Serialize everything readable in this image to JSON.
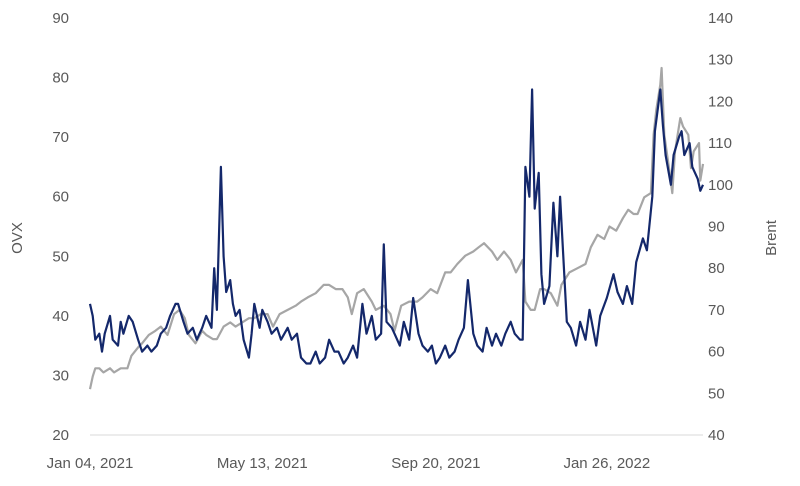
{
  "chart_data": {
    "type": "line",
    "title": "",
    "xlabel": "",
    "ylabel": "OVX",
    "y2label": "Brent",
    "ylim": [
      20,
      90
    ],
    "y2lim": [
      40,
      140
    ],
    "yticks": [
      20,
      30,
      40,
      50,
      60,
      70,
      80,
      90
    ],
    "y2ticks": [
      40,
      50,
      60,
      70,
      80,
      90,
      100,
      110,
      120,
      130,
      140
    ],
    "x_tick_labels": [
      "Jan 04, 2021",
      "May 13, 2021",
      "Sep 20, 2021",
      "Jan 26, 2022"
    ],
    "x_tick_dates": [
      "2021-01-04",
      "2021-05-13",
      "2021-09-20",
      "2022-01-26"
    ],
    "x_range": [
      "2021-01-04",
      "2022-04-08"
    ],
    "grid": false,
    "legend": "none",
    "series": [
      {
        "name": "OVX",
        "axis": "left",
        "color": "#14286b",
        "points": [
          [
            "2021-01-04",
            42
          ],
          [
            "2021-01-06",
            40
          ],
          [
            "2021-01-08",
            36
          ],
          [
            "2021-01-11",
            37
          ],
          [
            "2021-01-13",
            34
          ],
          [
            "2021-01-15",
            37
          ],
          [
            "2021-01-19",
            40
          ],
          [
            "2021-01-21",
            36
          ],
          [
            "2021-01-25",
            35
          ],
          [
            "2021-01-27",
            39
          ],
          [
            "2021-01-29",
            37
          ],
          [
            "2021-02-02",
            40
          ],
          [
            "2021-02-05",
            39
          ],
          [
            "2021-02-09",
            36
          ],
          [
            "2021-02-12",
            34
          ],
          [
            "2021-02-16",
            35
          ],
          [
            "2021-02-19",
            34
          ],
          [
            "2021-02-23",
            35
          ],
          [
            "2021-02-26",
            37
          ],
          [
            "2021-03-02",
            38
          ],
          [
            "2021-03-05",
            40
          ],
          [
            "2021-03-09",
            42
          ],
          [
            "2021-03-11",
            42
          ],
          [
            "2021-03-15",
            39
          ],
          [
            "2021-03-18",
            37
          ],
          [
            "2021-03-22",
            38
          ],
          [
            "2021-03-25",
            36
          ],
          [
            "2021-03-29",
            38
          ],
          [
            "2021-04-01",
            40
          ],
          [
            "2021-04-05",
            38
          ],
          [
            "2021-04-07",
            48
          ],
          [
            "2021-04-09",
            41
          ],
          [
            "2021-04-12",
            65
          ],
          [
            "2021-04-14",
            50
          ],
          [
            "2021-04-16",
            44
          ],
          [
            "2021-04-19",
            46
          ],
          [
            "2021-04-21",
            42
          ],
          [
            "2021-04-23",
            40
          ],
          [
            "2021-04-26",
            41
          ],
          [
            "2021-04-29",
            36
          ],
          [
            "2021-05-03",
            33
          ],
          [
            "2021-05-05",
            37
          ],
          [
            "2021-05-07",
            42
          ],
          [
            "2021-05-11",
            38
          ],
          [
            "2021-05-13",
            41
          ],
          [
            "2021-05-17",
            39
          ],
          [
            "2021-05-20",
            37
          ],
          [
            "2021-05-24",
            38
          ],
          [
            "2021-05-27",
            36
          ],
          [
            "2021-06-01",
            38
          ],
          [
            "2021-06-04",
            36
          ],
          [
            "2021-06-08",
            37
          ],
          [
            "2021-06-11",
            33
          ],
          [
            "2021-06-15",
            32
          ],
          [
            "2021-06-18",
            32
          ],
          [
            "2021-06-22",
            34
          ],
          [
            "2021-06-25",
            32
          ],
          [
            "2021-06-29",
            33
          ],
          [
            "2021-07-02",
            36
          ],
          [
            "2021-07-06",
            34
          ],
          [
            "2021-07-09",
            34
          ],
          [
            "2021-07-13",
            32
          ],
          [
            "2021-07-16",
            33
          ],
          [
            "2021-07-20",
            35
          ],
          [
            "2021-07-23",
            33
          ],
          [
            "2021-07-27",
            42
          ],
          [
            "2021-07-30",
            37
          ],
          [
            "2021-08-03",
            40
          ],
          [
            "2021-08-06",
            36
          ],
          [
            "2021-08-10",
            37
          ],
          [
            "2021-08-12",
            52
          ],
          [
            "2021-08-14",
            39
          ],
          [
            "2021-08-18",
            38
          ],
          [
            "2021-08-20",
            37
          ],
          [
            "2021-08-24",
            35
          ],
          [
            "2021-08-27",
            39
          ],
          [
            "2021-08-31",
            36
          ],
          [
            "2021-09-03",
            43
          ],
          [
            "2021-09-07",
            37
          ],
          [
            "2021-09-10",
            35
          ],
          [
            "2021-09-14",
            34
          ],
          [
            "2021-09-17",
            35
          ],
          [
            "2021-09-20",
            32
          ],
          [
            "2021-09-23",
            33
          ],
          [
            "2021-09-27",
            35
          ],
          [
            "2021-09-30",
            33
          ],
          [
            "2021-10-04",
            34
          ],
          [
            "2021-10-07",
            36
          ],
          [
            "2021-10-11",
            38
          ],
          [
            "2021-10-14",
            46
          ],
          [
            "2021-10-18",
            37
          ],
          [
            "2021-10-21",
            35
          ],
          [
            "2021-10-25",
            34
          ],
          [
            "2021-10-28",
            38
          ],
          [
            "2021-11-01",
            35
          ],
          [
            "2021-11-04",
            37
          ],
          [
            "2021-11-08",
            35
          ],
          [
            "2021-11-11",
            37
          ],
          [
            "2021-11-15",
            39
          ],
          [
            "2021-11-18",
            37
          ],
          [
            "2021-11-22",
            36
          ],
          [
            "2021-11-24",
            36
          ],
          [
            "2021-11-26",
            65
          ],
          [
            "2021-11-29",
            60
          ],
          [
            "2021-12-01",
            78
          ],
          [
            "2021-12-03",
            58
          ],
          [
            "2021-12-06",
            64
          ],
          [
            "2021-12-08",
            47
          ],
          [
            "2021-12-10",
            42
          ],
          [
            "2021-12-14",
            45
          ],
          [
            "2021-12-17",
            59
          ],
          [
            "2021-12-20",
            50
          ],
          [
            "2021-12-22",
            60
          ],
          [
            "2021-12-27",
            39
          ],
          [
            "2021-12-30",
            38
          ],
          [
            "2022-01-03",
            35
          ],
          [
            "2022-01-06",
            39
          ],
          [
            "2022-01-10",
            36
          ],
          [
            "2022-01-13",
            41
          ],
          [
            "2022-01-18",
            35
          ],
          [
            "2022-01-21",
            40
          ],
          [
            "2022-01-26",
            43
          ],
          [
            "2022-01-31",
            47
          ],
          [
            "2022-02-03",
            44
          ],
          [
            "2022-02-07",
            42
          ],
          [
            "2022-02-10",
            45
          ],
          [
            "2022-02-14",
            42
          ],
          [
            "2022-02-17",
            49
          ],
          [
            "2022-02-22",
            53
          ],
          [
            "2022-02-25",
            51
          ],
          [
            "2022-03-01",
            60
          ],
          [
            "2022-03-03",
            71
          ],
          [
            "2022-03-07",
            78
          ],
          [
            "2022-03-09",
            72
          ],
          [
            "2022-03-11",
            67
          ],
          [
            "2022-03-15",
            62
          ],
          [
            "2022-03-17",
            67
          ],
          [
            "2022-03-21",
            70
          ],
          [
            "2022-03-23",
            71
          ],
          [
            "2022-03-25",
            67
          ],
          [
            "2022-03-29",
            69
          ],
          [
            "2022-03-31",
            65
          ],
          [
            "2022-04-04",
            63
          ],
          [
            "2022-04-06",
            61
          ],
          [
            "2022-04-08",
            62
          ]
        ]
      },
      {
        "name": "Brent",
        "axis": "right",
        "color": "#a6a6a6",
        "points": [
          [
            "2021-01-04",
            51
          ],
          [
            "2021-01-06",
            54
          ],
          [
            "2021-01-08",
            56
          ],
          [
            "2021-01-11",
            56
          ],
          [
            "2021-01-14",
            55
          ],
          [
            "2021-01-19",
            56
          ],
          [
            "2021-01-22",
            55
          ],
          [
            "2021-01-27",
            56
          ],
          [
            "2021-02-01",
            56
          ],
          [
            "2021-02-04",
            59
          ],
          [
            "2021-02-09",
            61
          ],
          [
            "2021-02-12",
            62
          ],
          [
            "2021-02-17",
            64
          ],
          [
            "2021-02-22",
            65
          ],
          [
            "2021-02-26",
            66
          ],
          [
            "2021-03-03",
            64
          ],
          [
            "2021-03-08",
            69
          ],
          [
            "2021-03-12",
            70
          ],
          [
            "2021-03-16",
            68
          ],
          [
            "2021-03-19",
            64
          ],
          [
            "2021-03-24",
            62
          ],
          [
            "2021-03-29",
            65
          ],
          [
            "2021-04-01",
            64
          ],
          [
            "2021-04-06",
            63
          ],
          [
            "2021-04-09",
            63
          ],
          [
            "2021-04-14",
            66
          ],
          [
            "2021-04-19",
            67
          ],
          [
            "2021-04-23",
            66
          ],
          [
            "2021-04-28",
            67
          ],
          [
            "2021-05-03",
            68
          ],
          [
            "2021-05-07",
            68
          ],
          [
            "2021-05-12",
            69
          ],
          [
            "2021-05-17",
            69
          ],
          [
            "2021-05-21",
            66
          ],
          [
            "2021-05-26",
            69
          ],
          [
            "2021-06-01",
            70
          ],
          [
            "2021-06-07",
            71
          ],
          [
            "2021-06-11",
            72
          ],
          [
            "2021-06-16",
            73
          ],
          [
            "2021-06-22",
            74
          ],
          [
            "2021-06-28",
            76
          ],
          [
            "2021-07-02",
            76
          ],
          [
            "2021-07-07",
            75
          ],
          [
            "2021-07-12",
            75
          ],
          [
            "2021-07-16",
            73
          ],
          [
            "2021-07-19",
            69
          ],
          [
            "2021-07-23",
            74
          ],
          [
            "2021-07-28",
            75
          ],
          [
            "2021-08-03",
            72
          ],
          [
            "2021-08-06",
            70
          ],
          [
            "2021-08-12",
            71
          ],
          [
            "2021-08-17",
            69
          ],
          [
            "2021-08-20",
            65
          ],
          [
            "2021-08-25",
            71
          ],
          [
            "2021-08-31",
            72
          ],
          [
            "2021-09-06",
            72
          ],
          [
            "2021-09-10",
            73
          ],
          [
            "2021-09-16",
            75
          ],
          [
            "2021-09-21",
            74
          ],
          [
            "2021-09-27",
            79
          ],
          [
            "2021-10-01",
            79
          ],
          [
            "2021-10-06",
            81
          ],
          [
            "2021-10-12",
            83
          ],
          [
            "2021-10-18",
            84
          ],
          [
            "2021-10-22",
            85
          ],
          [
            "2021-10-26",
            86
          ],
          [
            "2021-11-01",
            84
          ],
          [
            "2021-11-05",
            82
          ],
          [
            "2021-11-10",
            84
          ],
          [
            "2021-11-15",
            82
          ],
          [
            "2021-11-19",
            79
          ],
          [
            "2021-11-24",
            82
          ],
          [
            "2021-11-26",
            72
          ],
          [
            "2021-11-30",
            70
          ],
          [
            "2021-12-03",
            70
          ],
          [
            "2021-12-07",
            75
          ],
          [
            "2021-12-10",
            75
          ],
          [
            "2021-12-15",
            74
          ],
          [
            "2021-12-20",
            71
          ],
          [
            "2021-12-23",
            76
          ],
          [
            "2021-12-29",
            79
          ],
          [
            "2022-01-04",
            80
          ],
          [
            "2022-01-10",
            81
          ],
          [
            "2022-01-14",
            85
          ],
          [
            "2022-01-19",
            88
          ],
          [
            "2022-01-24",
            87
          ],
          [
            "2022-01-28",
            90
          ],
          [
            "2022-02-02",
            89
          ],
          [
            "2022-02-07",
            92
          ],
          [
            "2022-02-11",
            94
          ],
          [
            "2022-02-15",
            93
          ],
          [
            "2022-02-18",
            93
          ],
          [
            "2022-02-23",
            97
          ],
          [
            "2022-02-28",
            98
          ],
          [
            "2022-03-02",
            112
          ],
          [
            "2022-03-04",
            118
          ],
          [
            "2022-03-07",
            124
          ],
          [
            "2022-03-08",
            128
          ],
          [
            "2022-03-10",
            112
          ],
          [
            "2022-03-14",
            103
          ],
          [
            "2022-03-16",
            98
          ],
          [
            "2022-03-18",
            108
          ],
          [
            "2022-03-22",
            116
          ],
          [
            "2022-03-24",
            114
          ],
          [
            "2022-03-28",
            112
          ],
          [
            "2022-03-30",
            104
          ],
          [
            "2022-04-01",
            108
          ],
          [
            "2022-04-05",
            110
          ],
          [
            "2022-04-06",
            101
          ],
          [
            "2022-04-08",
            105
          ]
        ]
      }
    ]
  }
}
